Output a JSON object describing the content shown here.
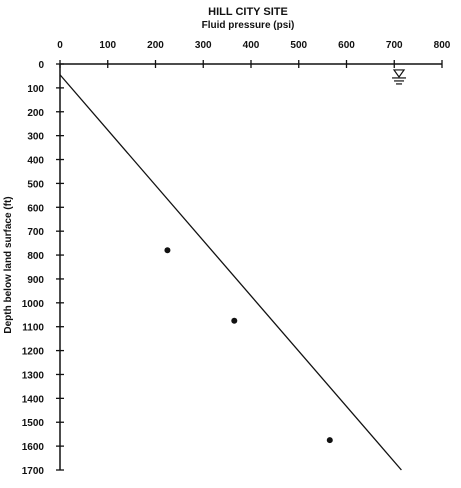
{
  "chart_data": {
    "type": "scatter",
    "title": "HILL CITY SITE",
    "xlabel": "Fluid pressure (psi)",
    "ylabel": "Depth below land surface (ft)",
    "xlim": [
      0,
      800
    ],
    "ylim": [
      1700,
      0
    ],
    "x_axis_position": "top",
    "x_ticks": [
      "0",
      "100",
      "200",
      "300",
      "400",
      "500",
      "600",
      "700",
      "800"
    ],
    "y_ticks": [
      "0",
      "100",
      "200",
      "300",
      "400",
      "500",
      "600",
      "700",
      "800",
      "900",
      "1000",
      "1100",
      "1200",
      "1300",
      "1400",
      "1500",
      "1600",
      "1700"
    ],
    "grid": false,
    "series": [
      {
        "type": "scatter",
        "points": [
          {
            "x": 225,
            "y": 780
          },
          {
            "x": 365,
            "y": 1075
          },
          {
            "x": 565,
            "y": 1575
          }
        ]
      },
      {
        "type": "line",
        "points": [
          {
            "x": 0,
            "y": 45
          },
          {
            "x": 715,
            "y": 1700
          }
        ]
      }
    ],
    "annotations": [
      {
        "type": "water-table-symbol",
        "x": 710,
        "y": 50
      }
    ],
    "colors": {
      "ink": "#111111",
      "background": "#ffffff"
    }
  }
}
